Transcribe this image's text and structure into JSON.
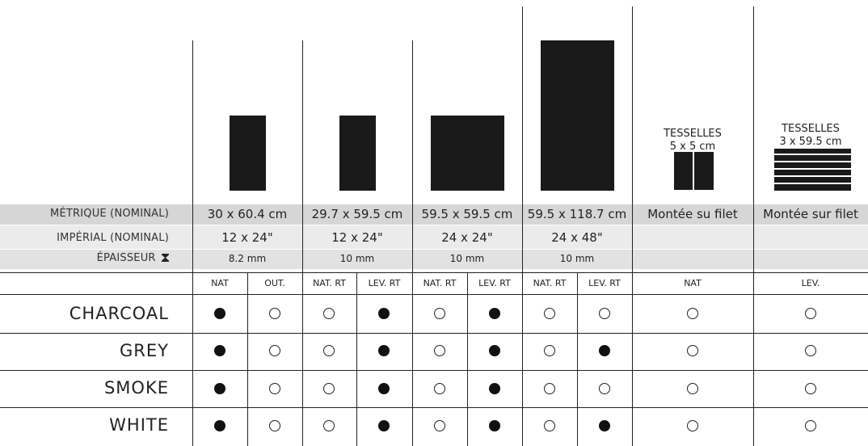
{
  "rows": {
    "metric_label": "MÉTRIQUE (NOMINAL)",
    "imperial_label": "IMPÉRIAL (NOMINAL)",
    "thickness_label": "ÉPAISSEUR",
    "thickness_icon": "hourglass-icon"
  },
  "formats": [
    {
      "metric": "30 x 60.4 cm",
      "imperial": "12 x 24\"",
      "thickness": "8.2 mm",
      "finishes": [
        "NAT",
        "OUT."
      ]
    },
    {
      "metric": "29.7 x 59.5 cm",
      "imperial": "12 x 24\"",
      "thickness": "10 mm",
      "finishes": [
        "NAT. RT",
        "LEV. RT"
      ]
    },
    {
      "metric": "59.5 x 59.5 cm",
      "imperial": "24 x 24\"",
      "thickness": "10 mm",
      "finishes": [
        "NAT. RT",
        "LEV. RT"
      ]
    },
    {
      "metric": "59.5 x 118.7 cm",
      "imperial": "24 x 48\"",
      "thickness": "10 mm",
      "finishes": [
        "NAT. RT",
        "LEV. RT"
      ]
    },
    {
      "title": "TESSELLES",
      "size": "5 x 5 cm",
      "metric": "Montée su filet",
      "imperial": "",
      "thickness": "",
      "finishes": [
        "NAT"
      ]
    },
    {
      "title": "TESSELLES",
      "size": "3 x 59.5 cm",
      "metric": "Montée sur filet",
      "imperial": "",
      "thickness": "",
      "finishes": [
        "LEV."
      ]
    }
  ],
  "colors": [
    {
      "name": "CHARCOAL",
      "availability": [
        1,
        0,
        0,
        1,
        0,
        1,
        0,
        0,
        0,
        0
      ]
    },
    {
      "name": "GREY",
      "availability": [
        1,
        0,
        0,
        1,
        0,
        1,
        0,
        1,
        0,
        0
      ]
    },
    {
      "name": "SMOKE",
      "availability": [
        1,
        0,
        0,
        1,
        0,
        1,
        0,
        0,
        0,
        0
      ]
    },
    {
      "name": "WHITE",
      "availability": [
        1,
        0,
        0,
        1,
        0,
        1,
        0,
        1,
        0,
        0
      ]
    }
  ],
  "legend": {
    "available_symbol": "filled-circle",
    "unavailable_symbol": "empty-circle",
    "row_shade_color": "#d9d9d9",
    "row_light_color": "#ececec"
  }
}
